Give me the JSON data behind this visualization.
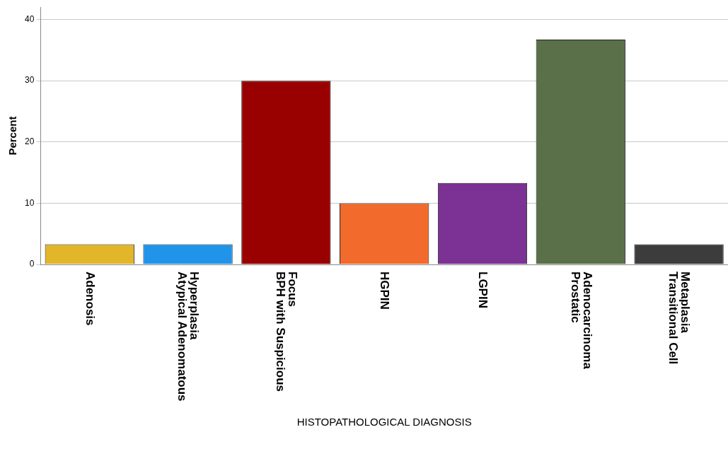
{
  "chart_data": {
    "type": "bar",
    "xlabel": "HISTOPATHOLOGICAL DIAGNOSIS",
    "ylabel": "Percent",
    "categories": [
      "Adenosis",
      "Atypical Adenomatous Hyperplasia",
      "BPH with Suspicious Focus",
      "HGPIN",
      "LGPIN",
      "Prostatic Adenocarcinoma",
      "Transitional Cell Metaplasia"
    ],
    "values": [
      3.3,
      3.3,
      30,
      10,
      13.3,
      36.7,
      3.3
    ],
    "colors": [
      "#e3b52a",
      "#1f94e8",
      "#990000",
      "#f26b2c",
      "#7b3294",
      "#5a7048",
      "#3c3c3c"
    ],
    "ylim": [
      0,
      42
    ],
    "yticks": [
      0,
      10,
      20,
      30,
      40
    ],
    "grid": "y",
    "legend": false
  }
}
